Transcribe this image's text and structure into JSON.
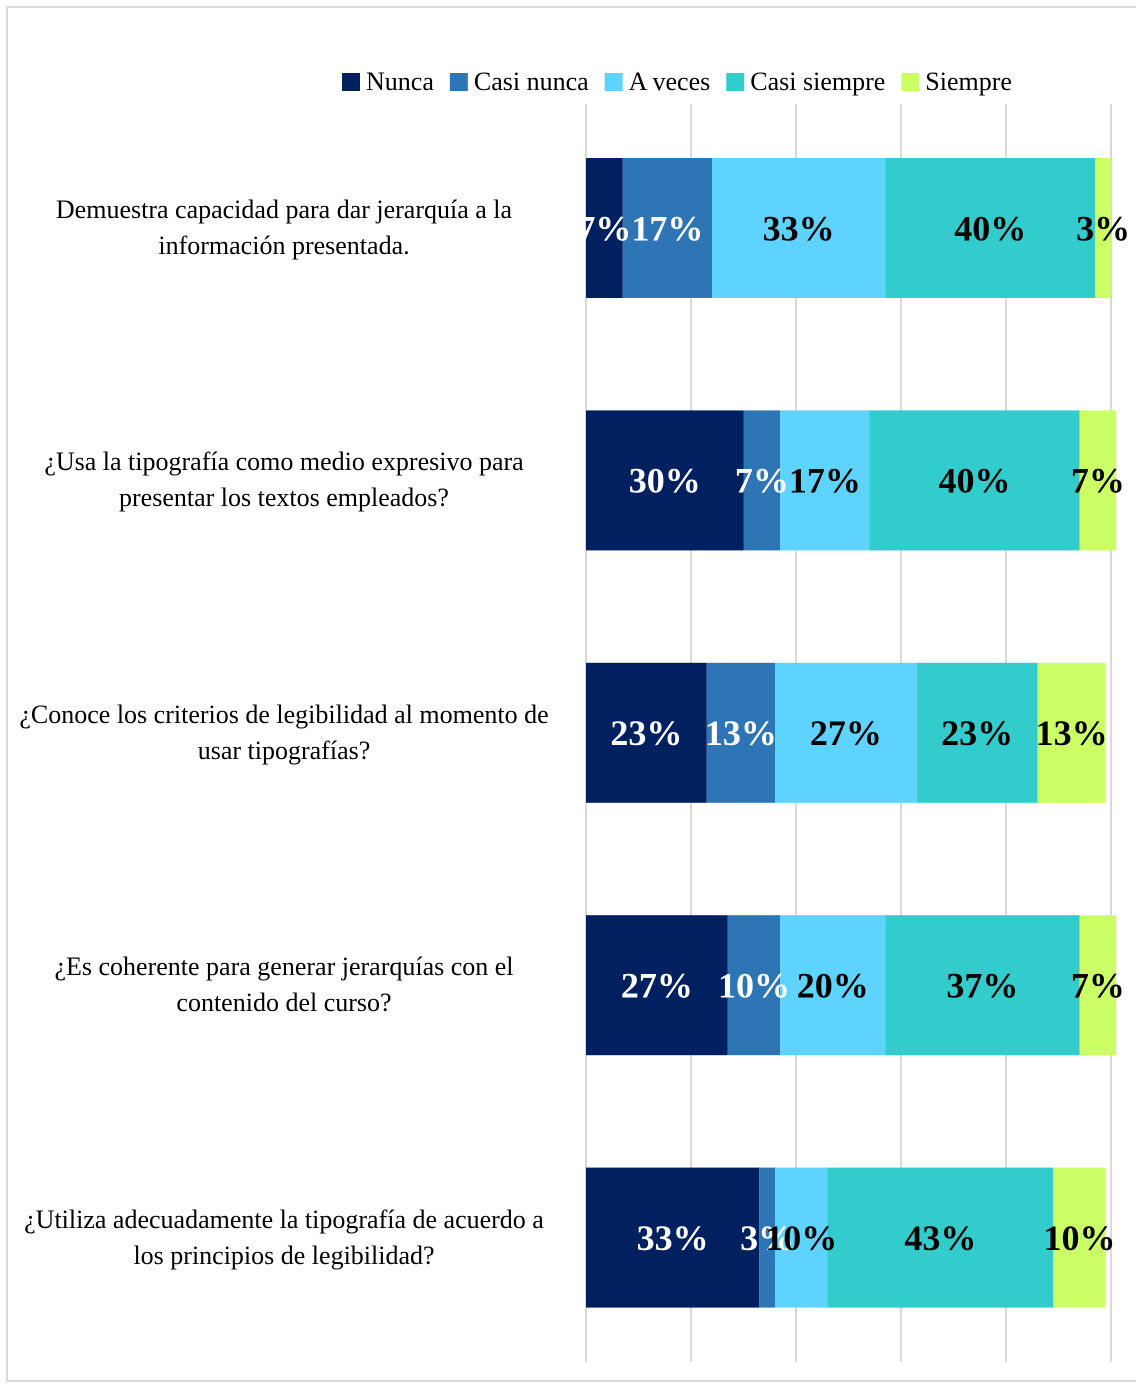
{
  "chart_data": {
    "type": "stacked-bar-horizontal",
    "categories": [
      "Demuestra capacidad para dar jerarquía a la información presentada.",
      "¿Usa la tipografía como medio expresivo para presentar los textos empleados?",
      "¿Conoce los criterios de legibilidad al momento de usar tipografías?",
      "¿Es coherente para generar jerarquías con el contenido del curso?",
      "¿Utiliza adecuadamente la tipografía de acuerdo a los principios de legibilidad?"
    ],
    "series": [
      {
        "name": "Nunca",
        "color": "#002060",
        "values": [
          7,
          30,
          23,
          27,
          33
        ],
        "value_labels": [
          "7%",
          "30%",
          "23%",
          "27%",
          "33%"
        ]
      },
      {
        "name": "Casi nunca",
        "color": "#2e75b6",
        "values": [
          17,
          7,
          13,
          10,
          3
        ],
        "value_labels": [
          "17%",
          "7%",
          "13%",
          "10%",
          "3%"
        ]
      },
      {
        "name": "A veces",
        "color": "#5dd3fd",
        "values": [
          33,
          17,
          27,
          20,
          10
        ],
        "value_labels": [
          "33%",
          "17%",
          "27%",
          "20%",
          "10%"
        ]
      },
      {
        "name": "Casi siempre",
        "color": "#33cccc",
        "values": [
          40,
          40,
          23,
          37,
          43
        ],
        "value_labels": [
          "40%",
          "40%",
          "23%",
          "37%",
          "43%"
        ]
      },
      {
        "name": "Siempre",
        "color": "#ccff66",
        "values": [
          3,
          7,
          13,
          7,
          10
        ],
        "value_labels": [
          "3%",
          "7%",
          "13%",
          "7%",
          "10%"
        ]
      }
    ],
    "xlim": [
      0,
      100
    ],
    "xticks": [
      0,
      20,
      40,
      60,
      80,
      100
    ],
    "grid": true,
    "legend": "top"
  }
}
